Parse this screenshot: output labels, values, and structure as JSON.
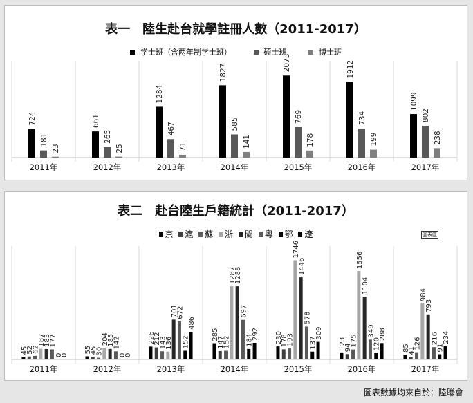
{
  "source": "圖表數據均來自於：陸聯會",
  "watermark": "圖表區",
  "chart_data": [
    {
      "type": "bar",
      "title": "表一　陸生赴台就學註冊人數（2011-2017）",
      "categories": [
        "2011年",
        "2012年",
        "2013年",
        "2014年",
        "2015年",
        "2016年",
        "2017年"
      ],
      "series": [
        {
          "name": "学士班（含两年制学士班）",
          "color": "#000000",
          "values": [
            724,
            661,
            1284,
            1827,
            2073,
            1912,
            1099
          ]
        },
        {
          "name": "硕士班",
          "color": "#595959",
          "values": [
            181,
            265,
            467,
            585,
            769,
            734,
            802
          ]
        },
        {
          "name": "博士班",
          "color": "#7f7f7f",
          "values": [
            23,
            25,
            71,
            141,
            178,
            199,
            238
          ]
        }
      ],
      "ylim": [
        0,
        2200
      ],
      "grid": true,
      "legend": "top"
    },
    {
      "type": "bar",
      "title": "表二　赴台陸生戶籍統計（2011-2017）",
      "categories": [
        "2011年",
        "2012年",
        "2013年",
        "2014年",
        "2015年",
        "2016年",
        "2017年"
      ],
      "series": [
        {
          "name": "京",
          "color": "#000000",
          "values": [
            45,
            55,
            226,
            285,
            230,
            123,
            85
          ]
        },
        {
          "name": "滬",
          "color": "#3f3f3f",
          "values": [
            52,
            45,
            212,
            147,
            178,
            94,
            41
          ]
        },
        {
          "name": "蘇",
          "color": "#595959",
          "values": [
            62,
            30,
            143,
            152,
            193,
            175,
            126
          ]
        },
        {
          "name": "浙",
          "color": "#a6a6a6",
          "values": [
            187,
            204,
            136,
            1287,
            1746,
            1556,
            984
          ]
        },
        {
          "name": "閩",
          "color": "#262626",
          "values": [
            183,
            185,
            701,
            1288,
            1446,
            1104,
            793
          ]
        },
        {
          "name": "粵",
          "color": "#595959",
          "values": [
            177,
            142,
            672,
            697,
            578,
            349,
            216
          ]
        },
        {
          "name": "鄂",
          "color": "#000000",
          "values": [
            0,
            0,
            152,
            184,
            137,
            120,
            91
          ]
        },
        {
          "name": "遼",
          "color": "#000000",
          "values": [
            0,
            0,
            486,
            292,
            309,
            288,
            234
          ]
        }
      ],
      "ylim": [
        0,
        1800
      ],
      "grid": true,
      "legend": "top"
    }
  ]
}
